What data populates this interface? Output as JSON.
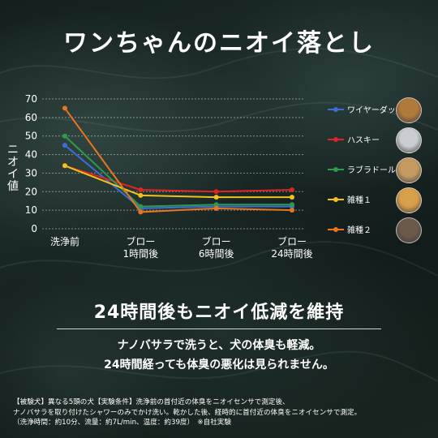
{
  "title": "ワンちゃんのニオイ落とし",
  "chart_data": {
    "type": "line",
    "ylabel": "ニオイ値",
    "ylim": [
      0,
      70
    ],
    "yticks": [
      0,
      10,
      20,
      30,
      40,
      50,
      60,
      70
    ],
    "categories": [
      "洗浄前",
      "ブロー\n1時間後",
      "ブロー\n6時間後",
      "ブロー\n24時間後"
    ],
    "grid": true,
    "legend_position": "right",
    "series": [
      {
        "name": "ワイヤーダックス",
        "color": "#3b6fd4",
        "values": [
          45,
          11,
          12,
          12
        ]
      },
      {
        "name": "ハスキー",
        "color": "#e02424",
        "values": [
          34,
          21,
          20,
          21
        ]
      },
      {
        "name": "ラブラドール",
        "color": "#2e9a4e",
        "values": [
          50,
          12,
          13,
          13
        ]
      },
      {
        "name": "雑種１",
        "color": "#f2c21a",
        "values": [
          34,
          18,
          17,
          17
        ]
      },
      {
        "name": "雑種２",
        "color": "#e8761e",
        "values": [
          65,
          9,
          11,
          10
        ]
      }
    ]
  },
  "legend_dogs": [
    {
      "icon": "dachshund-photo-icon",
      "color": "#b07a3c"
    },
    {
      "icon": "husky-photo-icon",
      "color": "#c9ccd0"
    },
    {
      "icon": "labrador-photo-icon",
      "color": "#c49a62"
    },
    {
      "icon": "mixed-breed-1-photo-icon",
      "color": "#d8a04a"
    },
    {
      "icon": "mixed-breed-2-photo-icon",
      "color": "#6b5a4a"
    }
  ],
  "subheadline": "24時間後もニオイ低減を維持",
  "body": [
    "ナノバサラで洗うと、犬の体臭も軽減。",
    "24時間経っても体臭の悪化は見られません。"
  ],
  "notes": [
    "【被験犬】異なる5頭の犬【実験条件】洗浄前の首付近の体臭をニオイセンサで測定後、",
    "ナノバサラを取り付けたシャワーのみでかけ洗い。乾かした後、経時的に首付近の体臭をニオイセンサで測定。",
    "（洗浄時間：約10分、流量：約7L/min、温度：約39度）　※自社実験"
  ]
}
